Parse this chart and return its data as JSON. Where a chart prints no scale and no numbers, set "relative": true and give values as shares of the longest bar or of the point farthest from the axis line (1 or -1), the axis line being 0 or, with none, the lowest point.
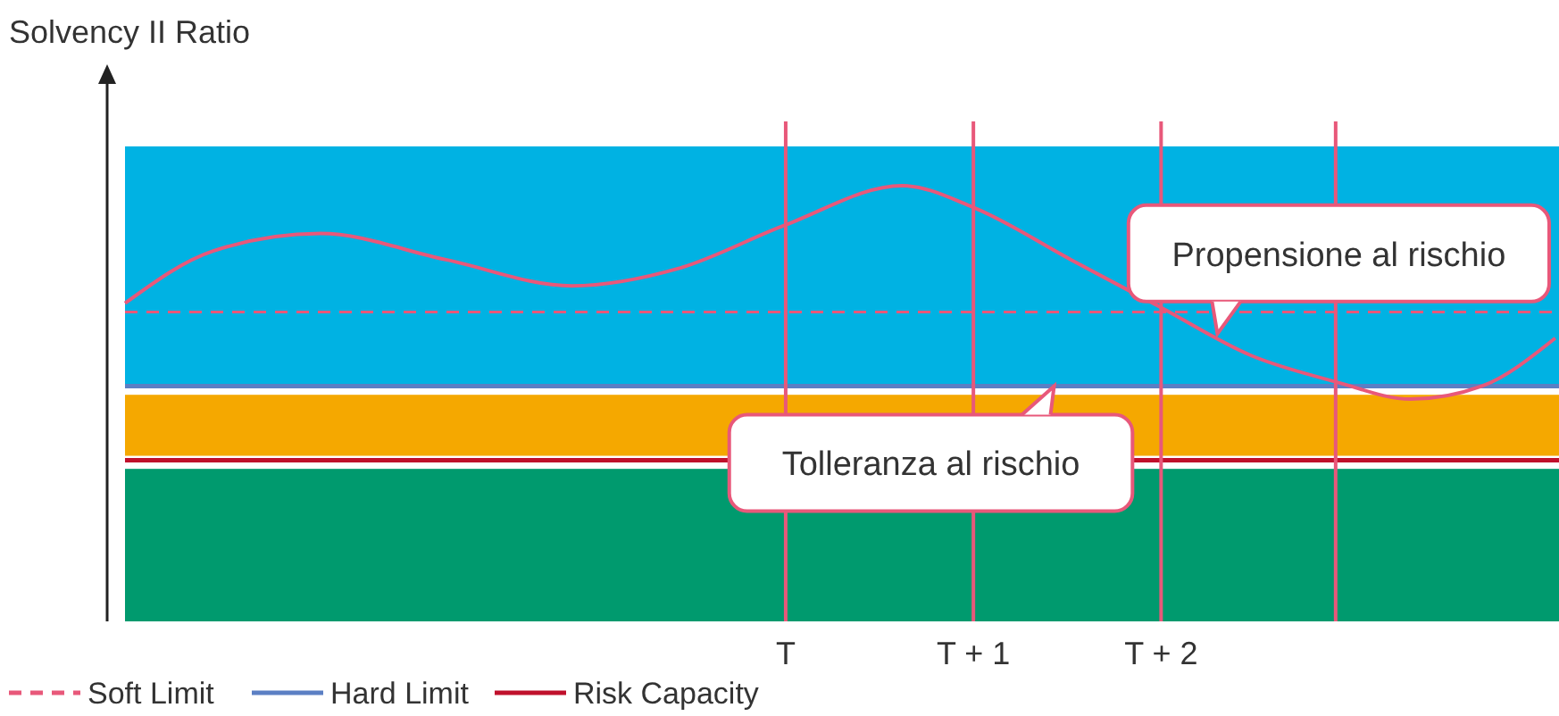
{
  "chart_data": {
    "type": "line",
    "relative": true,
    "ylabel": "Solvency II Ratio",
    "xlim": [
      -3.52,
      4.12
    ],
    "xticks": [
      {
        "value": 0,
        "label": "T"
      },
      {
        "value": 1,
        "label": "T + 1"
      },
      {
        "value": 2,
        "label": "T + 2"
      }
    ],
    "series": [
      {
        "color": "#e8587a",
        "x": [
          -3.52,
          -3.05,
          -2.48,
          -1.81,
          -1.14,
          -0.57,
          0,
          0.62,
          1,
          1.52,
          2,
          2.48,
          2.93,
          3.33,
          3.71,
          4.1
        ],
        "values": [
          0.73,
          0.85,
          0.89,
          0.83,
          0.77,
          0.81,
          0.91,
          1,
          0.95,
          0.83,
          0.72,
          0.61,
          0.55,
          0.51,
          0.54,
          0.65
        ]
      }
    ],
    "bands": [
      {
        "axis": "y",
        "from": 0,
        "to": 0.35,
        "color": "#009a6e"
      },
      {
        "axis": "y",
        "from": 0.38,
        "to": 0.52,
        "color": "#f5a800"
      },
      {
        "axis": "y",
        "from": 0.545,
        "to": 1.09,
        "color": "#00b2e3"
      }
    ],
    "ref_lines": [
      {
        "axis": "y",
        "value": 0.71,
        "label": "Soft Limit",
        "color": "#e8587a",
        "line_style": "dashed"
      },
      {
        "axis": "y",
        "value": 0.54,
        "label": "Hard Limit",
        "color": "#5b7fc4",
        "line_style": "solid"
      },
      {
        "axis": "y",
        "value": 0.37,
        "label": "Risk Capacity",
        "color": "#c0102c",
        "line_style": "solid"
      },
      {
        "axis": "x",
        "value": 0,
        "color": "#e8587a"
      },
      {
        "axis": "x",
        "value": 1,
        "color": "#e8587a"
      },
      {
        "axis": "x",
        "value": 2,
        "color": "#e8587a"
      },
      {
        "axis": "x",
        "value": 2.93,
        "color": "#e8587a"
      }
    ],
    "annotations": [
      {
        "text": "Propensione al rischio",
        "x": 2.3,
        "y": 0.66
      },
      {
        "text": "Tolleranza al rischio",
        "x": 1.43,
        "y": 0.54
      }
    ],
    "legend": "bottom left",
    "marker": "none",
    "line_style": "solid"
  }
}
